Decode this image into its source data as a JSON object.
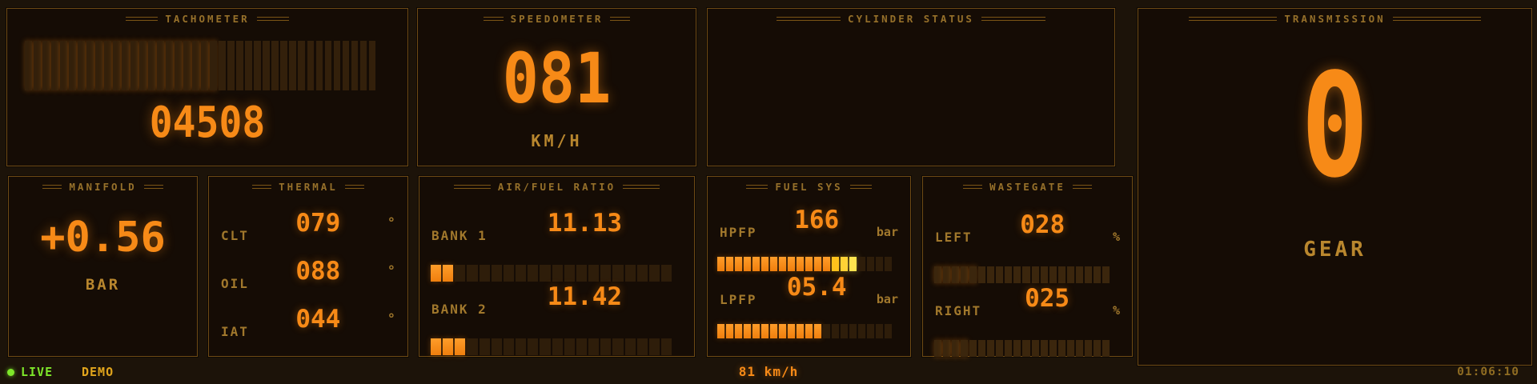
{
  "status_bar": {
    "live": "LIVE",
    "demo": "DEMO",
    "speed": "81 km/h",
    "clock": "01:06:10"
  },
  "panels": {
    "tachometer": {
      "title": "TACHOMETER",
      "value": "04508",
      "bar": {
        "total": 40,
        "lit": 22
      }
    },
    "speedometer": {
      "title": "SPEEDOMETER",
      "value": "081",
      "unit": "KM/H"
    },
    "cylinder_status": {
      "title": "CYLINDER STATUS"
    },
    "transmission": {
      "title": "TRANSMISSION",
      "value": "0",
      "unit": "GEAR"
    },
    "manifold": {
      "title": "MANIFOLD",
      "value": "+0.56",
      "unit": "BAR"
    },
    "thermal": {
      "title": "THERMAL",
      "rows": [
        {
          "label": "CLT",
          "value": "079",
          "unit": "°"
        },
        {
          "label": "OIL",
          "value": "088",
          "unit": "°"
        },
        {
          "label": "IAT",
          "value": "044",
          "unit": "°"
        }
      ]
    },
    "air_fuel": {
      "title": "AIR/FUEL RATIO",
      "rows": [
        {
          "label": "BANK 1",
          "value": "11.13",
          "bar": {
            "total": 20,
            "lit": 2
          }
        },
        {
          "label": "BANK 2",
          "value": "11.42",
          "bar": {
            "total": 20,
            "lit": 3
          }
        }
      ]
    },
    "fuel_sys": {
      "title": "FUEL SYS",
      "rows": [
        {
          "label": "HPFP",
          "value": "166",
          "unit": "bar",
          "bar": {
            "total": 20,
            "lit": 16,
            "yellow": [
              14,
              15,
              16
            ]
          }
        },
        {
          "label": "LPFP",
          "value": "05.4",
          "unit": "bar",
          "bar": {
            "total": 20,
            "lit": 12
          }
        }
      ]
    },
    "wastegate": {
      "title": "WASTEGATE",
      "rows": [
        {
          "label": "LEFT",
          "value": "028",
          "unit": "%",
          "bar": {
            "total": 20,
            "lit": 5
          }
        },
        {
          "label": "RIGHT",
          "value": "025",
          "unit": "%",
          "bar": {
            "total": 20,
            "lit": 4
          }
        }
      ]
    }
  },
  "colors": {
    "accent_orange": "#f78a17",
    "accent_yellow_1": "#ffc11c",
    "accent_yellow_2": "#ffd235",
    "accent_yellow_3": "#ffe44f",
    "label_tan": "#a1782c",
    "title_tan": "#96702a",
    "unit_gold": "#b9872e",
    "live_green": "#7ee62a",
    "demo_gold": "#e0a41c",
    "clock_tan": "#8f6c22",
    "panel_border": "#6e4a14",
    "panel_bg": "#150c05",
    "page_bg": "#1c1309",
    "seg_unlit": "#33200b"
  }
}
